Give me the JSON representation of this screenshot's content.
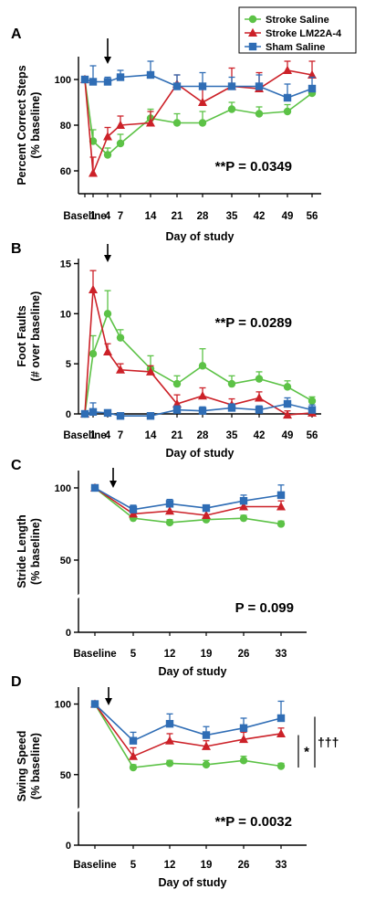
{
  "legend": [
    {
      "name": "Stroke Saline",
      "color": "#5cc246",
      "marker": "circle"
    },
    {
      "name": "Stroke LM22A-4",
      "color": "#cc2128",
      "marker": "triangle"
    },
    {
      "name": "Sham Saline",
      "color": "#2f6db5",
      "marker": "square"
    }
  ],
  "chart_data": [
    {
      "panel": "A",
      "type": "line",
      "ylabel": "Percent Correct Steps\n(% baseline)",
      "xlabel": "Day of study",
      "x_ticks": [
        "Baseline",
        "1",
        "4",
        "7",
        "14",
        "21",
        "28",
        "35",
        "42",
        "49",
        "56"
      ],
      "y_ticks": [
        60,
        80,
        100
      ],
      "ylim": [
        50,
        110
      ],
      "stat": "**P = 0.0349",
      "arrow_at": "4",
      "series": [
        {
          "name": "Stroke Saline",
          "x": [
            "Baseline",
            "1",
            "4",
            "7",
            "14",
            "21",
            "28",
            "35",
            "42",
            "49",
            "56"
          ],
          "values": [
            100,
            73,
            67,
            72,
            83,
            81,
            81,
            87,
            85,
            86,
            94
          ],
          "err": [
            0,
            5,
            3,
            4,
            4,
            4,
            5,
            3,
            3,
            3,
            2
          ]
        },
        {
          "name": "Stroke LM22A-4",
          "x": [
            "Baseline",
            "1",
            "4",
            "7",
            "14",
            "21",
            "28",
            "35",
            "42",
            "49",
            "56"
          ],
          "values": [
            100,
            59,
            75,
            80,
            81,
            98,
            90,
            97,
            96,
            104,
            102
          ],
          "err": [
            0,
            7,
            4,
            4,
            5,
            4,
            6,
            8,
            7,
            4,
            6
          ]
        },
        {
          "name": "Sham Saline",
          "x": [
            "Baseline",
            "1",
            "4",
            "7",
            "14",
            "21",
            "28",
            "35",
            "42",
            "49",
            "56"
          ],
          "values": [
            100,
            99,
            99,
            101,
            102,
            97,
            97,
            97,
            97,
            92,
            96
          ],
          "err": [
            0,
            7,
            2,
            3,
            6,
            5,
            6,
            4,
            5,
            6,
            5
          ]
        }
      ]
    },
    {
      "panel": "B",
      "type": "line",
      "ylabel": "Foot Faults\n(# over baseline)",
      "xlabel": "Day of study",
      "x_ticks": [
        "Baseline",
        "1",
        "4",
        "7",
        "14",
        "21",
        "28",
        "35",
        "42",
        "49",
        "56"
      ],
      "y_ticks": [
        0,
        5,
        10,
        15
      ],
      "ylim": [
        0,
        15.5
      ],
      "stat": "**P = 0.0289",
      "arrow_at": "4",
      "series": [
        {
          "name": "Stroke Saline",
          "x": [
            "Baseline",
            "1",
            "4",
            "7",
            "14",
            "21",
            "28",
            "35",
            "42",
            "49",
            "56"
          ],
          "values": [
            0,
            6,
            10,
            7.6,
            4.5,
            3,
            4.8,
            3,
            3.5,
            2.7,
            1.3
          ],
          "err": [
            0,
            1.8,
            2.3,
            0.8,
            1.3,
            0.8,
            1.7,
            0.8,
            0.7,
            0.6,
            0.4
          ]
        },
        {
          "name": "Stroke LM22A-4",
          "x": [
            "Baseline",
            "1",
            "4",
            "7",
            "14",
            "21",
            "28",
            "35",
            "42",
            "49",
            "56"
          ],
          "values": [
            0,
            12.4,
            6.2,
            4.4,
            4.2,
            1,
            1.8,
            0.9,
            1.6,
            -0.1,
            0.1
          ],
          "err": [
            0,
            1.9,
            0.8,
            0.6,
            0.6,
            0.9,
            0.8,
            0.6,
            0.6,
            0.4,
            0.3
          ]
        },
        {
          "name": "Sham Saline",
          "x": [
            "Baseline",
            "1",
            "4",
            "7",
            "14",
            "21",
            "28",
            "35",
            "42",
            "49",
            "56"
          ],
          "values": [
            0,
            0.2,
            0.1,
            -0.2,
            -0.2,
            0.4,
            0.3,
            0.6,
            0.4,
            1,
            0.4
          ],
          "err": [
            0,
            0.9,
            0.3,
            0.2,
            0.3,
            0.4,
            0.4,
            0.4,
            0.4,
            0.6,
            0.5
          ]
        }
      ]
    },
    {
      "panel": "C",
      "type": "line",
      "ylabel": "Stride Length\n(% baseline)",
      "xlabel": "Day of study",
      "x_ticks": [
        "Baseline",
        "5",
        "12",
        "19",
        "26",
        "33"
      ],
      "y_ticks": [
        0,
        50,
        100
      ],
      "ylim": [
        0,
        112
      ],
      "y_break": true,
      "stat": "P = 0.099",
      "arrow_at": "between Baseline and 5",
      "series": [
        {
          "name": "Stroke Saline",
          "x": [
            "Baseline",
            "5",
            "12",
            "19",
            "26",
            "33"
          ],
          "values": [
            100,
            79,
            76,
            78,
            79,
            75
          ],
          "err": [
            0,
            2,
            2,
            2,
            2,
            2
          ]
        },
        {
          "name": "Stroke LM22A-4",
          "x": [
            "Baseline",
            "5",
            "12",
            "19",
            "26",
            "33"
          ],
          "values": [
            100,
            82,
            84,
            81,
            87,
            87
          ],
          "err": [
            0,
            3,
            4,
            3,
            4,
            4
          ]
        },
        {
          "name": "Sham Saline",
          "x": [
            "Baseline",
            "5",
            "12",
            "19",
            "26",
            "33"
          ],
          "values": [
            100,
            85,
            89,
            86,
            91,
            95
          ],
          "err": [
            0,
            3,
            3,
            2,
            4,
            7
          ]
        }
      ]
    },
    {
      "panel": "D",
      "type": "line",
      "ylabel": "Swing Speed\n(% baseline)",
      "xlabel": "Day of study",
      "x_ticks": [
        "Baseline",
        "5",
        "12",
        "19",
        "26",
        "33"
      ],
      "y_ticks": [
        0,
        50,
        100
      ],
      "ylim": [
        0,
        112
      ],
      "y_break": true,
      "stat": "**P = 0.0032",
      "brackets": [
        "*",
        "†††"
      ],
      "arrow_at": "between Baseline and 5",
      "series": [
        {
          "name": "Stroke Saline",
          "x": [
            "Baseline",
            "5",
            "12",
            "19",
            "26",
            "33"
          ],
          "values": [
            100,
            55,
            58,
            57,
            60,
            56
          ],
          "err": [
            0,
            2,
            2,
            3,
            3,
            2
          ]
        },
        {
          "name": "Stroke LM22A-4",
          "x": [
            "Baseline",
            "5",
            "12",
            "19",
            "26",
            "33"
          ],
          "values": [
            100,
            63,
            74,
            70,
            75,
            79
          ],
          "err": [
            0,
            6,
            5,
            4,
            5,
            4
          ]
        },
        {
          "name": "Sham Saline",
          "x": [
            "Baseline",
            "5",
            "12",
            "19",
            "26",
            "33"
          ],
          "values": [
            100,
            74,
            86,
            78,
            83,
            90
          ],
          "err": [
            0,
            6,
            7,
            6,
            7,
            12
          ]
        }
      ]
    }
  ]
}
